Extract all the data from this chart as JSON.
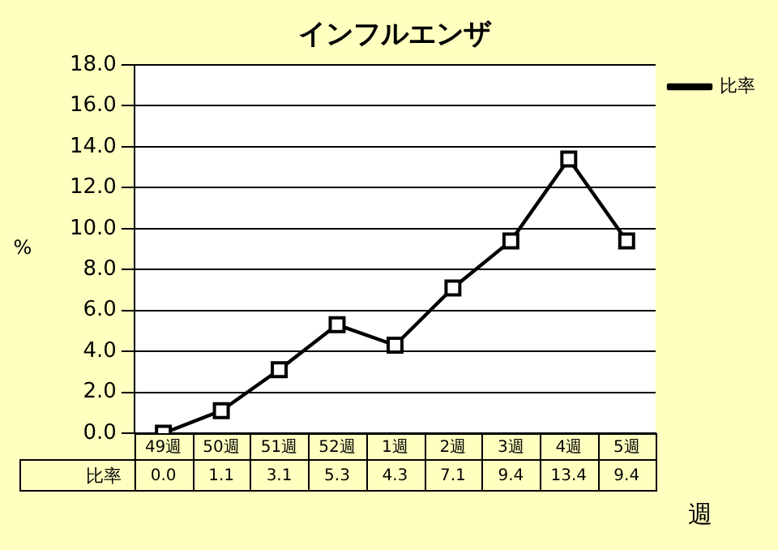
{
  "chart_data": {
    "type": "line",
    "title": "インフルエンザ",
    "xlabel": "週",
    "ylabel": "%",
    "categories": [
      "49週",
      "50週",
      "51週",
      "52週",
      "1週",
      "2週",
      "3週",
      "4週",
      "5週"
    ],
    "series": [
      {
        "name": "比率",
        "color": "#000000",
        "values": [
          0.0,
          1.1,
          3.1,
          5.3,
          4.3,
          7.1,
          9.4,
          13.4,
          9.4
        ],
        "value_labels": [
          "0.0",
          "1.1",
          "3.1",
          "5.3",
          "4.3",
          "7.1",
          "9.4",
          "13.4",
          "9.4"
        ]
      }
    ],
    "ylim": [
      0,
      18
    ],
    "yticks": [
      {
        "value": 0,
        "label": "0.0"
      },
      {
        "value": 2,
        "label": "2.0"
      },
      {
        "value": 4,
        "label": "4.0"
      },
      {
        "value": 6,
        "label": "6.0"
      },
      {
        "value": 8,
        "label": "8.0"
      },
      {
        "value": 10,
        "label": "10.0"
      },
      {
        "value": 12,
        "label": "12.0"
      },
      {
        "value": 14,
        "label": "14.0"
      },
      {
        "value": 16,
        "label": "16.0"
      },
      {
        "value": 18,
        "label": "18.0"
      }
    ],
    "grid": "y",
    "legend": "top right",
    "marker": "square",
    "line_style": "solid"
  }
}
